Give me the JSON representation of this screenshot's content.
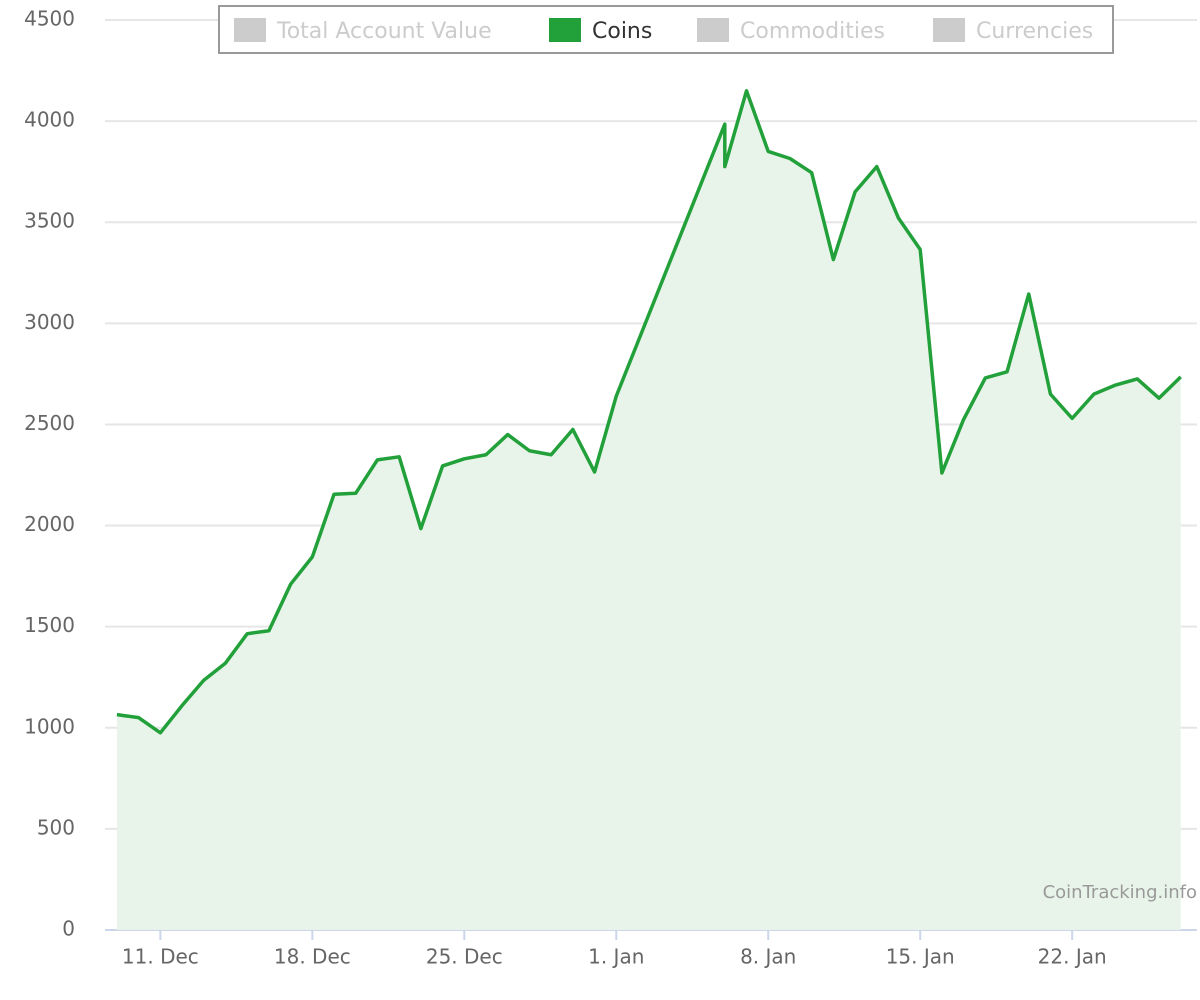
{
  "chart_data": {
    "type": "area",
    "x": [
      "9. Dec",
      "10. Dec",
      "11. Dec",
      "12. Dec",
      "13. Dec",
      "14. Dec",
      "15. Dec",
      "16. Dec",
      "17. Dec",
      "18. Dec",
      "19. Dec",
      "20. Dec",
      "21. Dec",
      "22. Dec",
      "23. Dec",
      "24. Dec",
      "25. Dec",
      "26. Dec",
      "27. Dec",
      "28. Dec",
      "29. Dec",
      "30. Dec",
      "31. Dec",
      "1. Jan",
      "6. Jan",
      "6. Jan",
      "7. Jan",
      "8. Jan",
      "9. Jan",
      "10. Jan",
      "11. Jan",
      "12. Jan",
      "13. Jan",
      "14. Jan",
      "15. Jan",
      "16. Jan",
      "17. Jan",
      "18. Jan",
      "19. Jan",
      "20. Jan",
      "21. Jan",
      "22. Jan",
      "23. Jan",
      "24. Jan",
      "25. Jan",
      "26. Jan",
      "27. Jan"
    ],
    "series": [
      {
        "name": "Total Account Value",
        "visible": false
      },
      {
        "name": "Coins",
        "color": "#22a03a",
        "visible": true,
        "values": [
          1065,
          1050,
          975,
          1110,
          1235,
          1320,
          1465,
          1480,
          1710,
          1845,
          2155,
          2160,
          2325,
          2340,
          1985,
          2295,
          2330,
          2350,
          2450,
          2370,
          2350,
          2475,
          2265,
          2640,
          3985,
          3775,
          4150,
          3850,
          3815,
          3745,
          3315,
          3650,
          3775,
          3520,
          3365,
          2260,
          2525,
          2730,
          2760,
          3145,
          2650,
          2530,
          2650,
          2695,
          2725,
          2630,
          2735
        ]
      },
      {
        "name": "Commodities",
        "visible": false
      },
      {
        "name": "Currencies",
        "visible": false
      }
    ],
    "xticks": [
      "11. Dec",
      "18. Dec",
      "25. Dec",
      "1. Jan",
      "8. Jan",
      "15. Jan",
      "22. Jan"
    ],
    "ylim": [
      0,
      4500
    ],
    "yticks": [
      0,
      500,
      1000,
      1500,
      2000,
      2500,
      3000,
      3500,
      4000,
      4500
    ],
    "grid": true,
    "fill_color": "#e8f4ea",
    "inactive_color": "#cccccc",
    "credit": "CoinTracking.info"
  }
}
